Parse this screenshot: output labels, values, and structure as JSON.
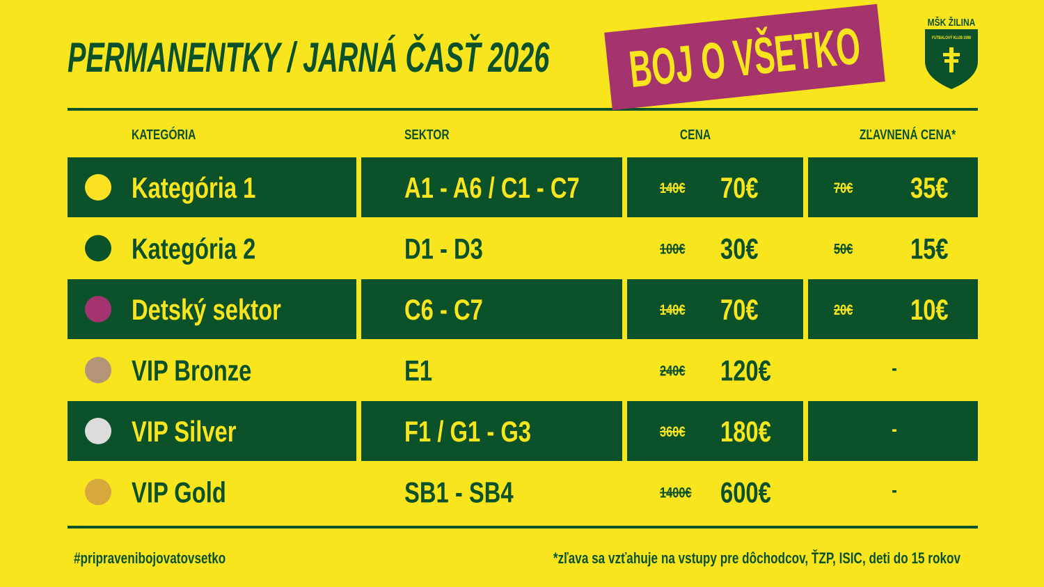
{
  "header": {
    "title": "PERMANENTKY / JARNÁ ČASŤ 2026",
    "badge": "BOJ O VŠETKO",
    "logo": "MŠK ŽILINA",
    "logo_sub": "FUTBALOVÝ KLUB 1908"
  },
  "table": {
    "columns": [
      "KATEGÓRIA",
      "SEKTOR",
      "CENA",
      "ZĽAVNENÁ CENA*"
    ],
    "rows": [
      {
        "dot": "#fbe122",
        "category": "Kategória 1",
        "sector": "A1 - A6 / C1 - C7",
        "old_price": "140€",
        "price": "70€",
        "old_discount": "70€",
        "discount": "35€"
      },
      {
        "dot": "#0b5129",
        "category": "Kategória 2",
        "sector": "D1 - D3",
        "old_price": "100€",
        "price": "30€",
        "old_discount": "50€",
        "discount": "15€"
      },
      {
        "dot": "#a43370",
        "category": "Detský sektor",
        "sector": "C6 - C7",
        "old_price": "140€",
        "price": "70€",
        "old_discount": "20€",
        "discount": "10€"
      },
      {
        "dot": "#b39477",
        "category": "VIP Bronze",
        "sector": "E1",
        "old_price": "240€",
        "price": "120€",
        "discount": "-"
      },
      {
        "dot": "#dcdcdc",
        "category": "VIP Silver",
        "sector": "F1 / G1 - G3",
        "old_price": "360€",
        "price": "180€",
        "discount": "-"
      },
      {
        "dot": "#d7a93c",
        "category": "VIP Gold",
        "sector": "SB1 - SB4",
        "old_price": "1400€",
        "price": "600€",
        "discount": "-"
      }
    ]
  },
  "footer": {
    "hashtag": "#pripravenibojovatovsetko",
    "note": "*zľava sa vzťahuje na vstupy pre dôchodcov, ŤZP, ISIC, deti do 15 rokov"
  }
}
